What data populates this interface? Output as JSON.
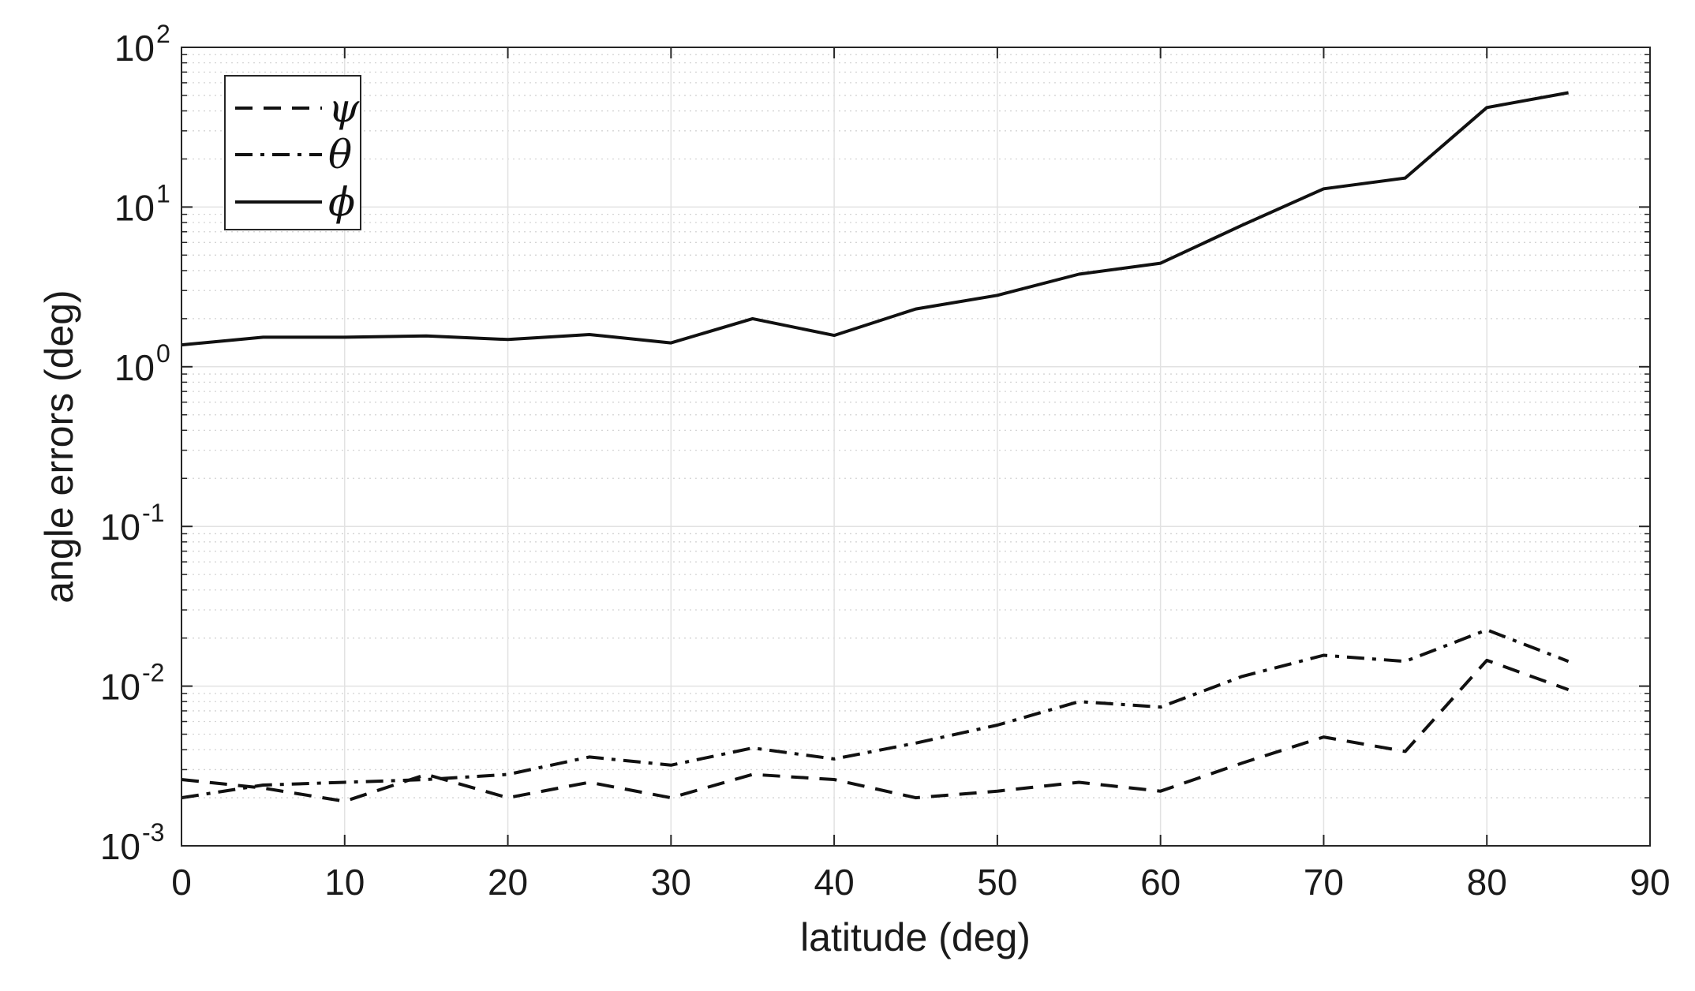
{
  "chart_data": {
    "type": "line",
    "xlabel": "latitude (deg)",
    "ylabel": "angle errors (deg)",
    "xlim": [
      0,
      90
    ],
    "ylim": [
      0.001,
      100
    ],
    "yscale": "log",
    "grid": true,
    "minor_grid": true,
    "legend_position": "top-left",
    "x_ticks": [
      0,
      10,
      20,
      30,
      40,
      50,
      60,
      70,
      80,
      90
    ],
    "y_ticks": [
      {
        "base": "10",
        "exp": "-3",
        "value": 0.001
      },
      {
        "base": "10",
        "exp": "-2",
        "value": 0.01
      },
      {
        "base": "10",
        "exp": "-1",
        "value": 0.1
      },
      {
        "base": "10",
        "exp": "0",
        "value": 1
      },
      {
        "base": "10",
        "exp": "1",
        "value": 10
      },
      {
        "base": "10",
        "exp": "2",
        "value": 100
      }
    ],
    "x": [
      0,
      5,
      10,
      15,
      20,
      25,
      30,
      35,
      40,
      45,
      50,
      55,
      60,
      65,
      70,
      75,
      80,
      85
    ],
    "series": [
      {
        "name": "ψ",
        "style": "dashed",
        "color": "#111111",
        "values": [
          0.0026,
          0.0023,
          0.0019,
          0.0028,
          0.002,
          0.0025,
          0.002,
          0.0028,
          0.0026,
          0.002,
          0.0022,
          0.0025,
          0.0022,
          0.0033,
          0.0048,
          0.0039,
          0.0145,
          0.0095
        ]
      },
      {
        "name": "θ",
        "style": "dashdot",
        "color": "#111111",
        "values": [
          0.002,
          0.0024,
          0.0025,
          0.0026,
          0.0028,
          0.0036,
          0.0032,
          0.0041,
          0.0035,
          0.0044,
          0.0057,
          0.008,
          0.0074,
          0.0115,
          0.0156,
          0.0143,
          0.0225,
          0.0143
        ]
      },
      {
        "name": "ϕ",
        "style": "solid",
        "color": "#111111",
        "values": [
          1.37,
          1.53,
          1.53,
          1.56,
          1.48,
          1.59,
          1.41,
          2.0,
          1.57,
          2.3,
          2.8,
          3.8,
          4.45,
          7.7,
          13.0,
          15.2,
          42.0,
          52.0
        ]
      }
    ]
  }
}
